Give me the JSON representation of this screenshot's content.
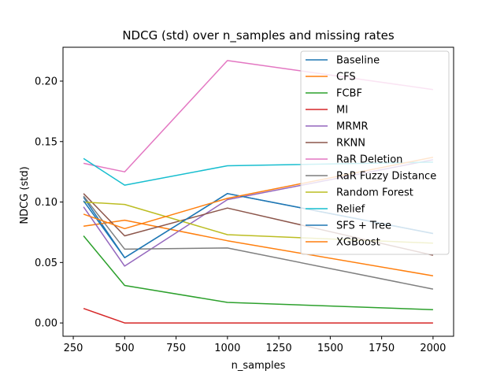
{
  "chart_data": {
    "type": "line",
    "title": "NDCG (std) over n_samples and missing rates",
    "xlabel": "n_samples",
    "ylabel": "NDCG (std)",
    "x": [
      300,
      500,
      1000,
      2000
    ],
    "xlim": [
      200,
      2100
    ],
    "ylim": [
      -0.011,
      0.228
    ],
    "xticks": [
      250,
      500,
      750,
      1000,
      1250,
      1500,
      1750,
      2000
    ],
    "xtick_labels": [
      "250",
      "500",
      "750",
      "1000",
      "1250",
      "1500",
      "1750",
      "2000"
    ],
    "yticks": [
      0.0,
      0.05,
      0.1,
      0.15,
      0.2
    ],
    "ytick_labels": [
      "0.00",
      "0.05",
      "0.10",
      "0.15",
      "0.20"
    ],
    "legend_position": "upper right",
    "grid": false,
    "series": [
      {
        "name": "Baseline",
        "color": "#1f77b4",
        "values": [
          0.104,
          0.054,
          0.107,
          0.074
        ]
      },
      {
        "name": "CFS",
        "color": "#ff7f0e",
        "values": [
          0.08,
          0.085,
          0.068,
          0.039
        ]
      },
      {
        "name": "FCBF",
        "color": "#2ca02c",
        "values": [
          0.072,
          0.031,
          0.017,
          0.011
        ]
      },
      {
        "name": "MI",
        "color": "#d62728",
        "values": [
          0.012,
          0.0,
          0.0,
          0.0
        ]
      },
      {
        "name": "MRMR",
        "color": "#9467bd",
        "values": [
          0.096,
          0.047,
          0.102,
          0.135
        ]
      },
      {
        "name": "RKNN",
        "color": "#8c564b",
        "values": [
          0.107,
          0.072,
          0.095,
          0.056
        ]
      },
      {
        "name": "RaR Deletion",
        "color": "#e377c2",
        "values": [
          0.132,
          0.125,
          0.217,
          0.193
        ]
      },
      {
        "name": "RaR Fuzzy Distance",
        "color": "#7f7f7f",
        "values": [
          0.105,
          0.061,
          0.062,
          0.028
        ]
      },
      {
        "name": "Random Forest",
        "color": "#bcbd22",
        "values": [
          0.1,
          0.098,
          0.073,
          0.066
        ]
      },
      {
        "name": "Relief",
        "color": "#17becf",
        "values": [
          0.136,
          0.114,
          0.13,
          0.133
        ]
      },
      {
        "name": "SFS + Tree",
        "color": "#1f77b4",
        "values": [
          0.101,
          0.054,
          0.107,
          0.074
        ]
      },
      {
        "name": "XGBoost",
        "color": "#ff7f0e",
        "values": [
          0.09,
          0.078,
          0.103,
          0.137
        ]
      }
    ]
  }
}
